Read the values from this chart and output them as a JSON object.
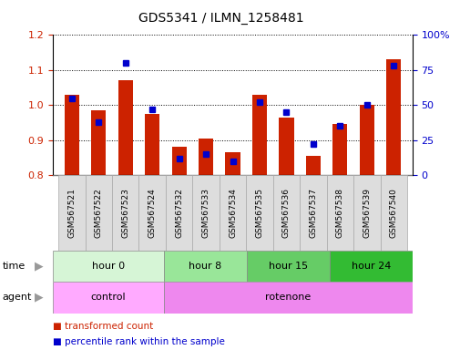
{
  "title": "GDS5341 / ILMN_1258481",
  "samples": [
    "GSM567521",
    "GSM567522",
    "GSM567523",
    "GSM567524",
    "GSM567532",
    "GSM567533",
    "GSM567534",
    "GSM567535",
    "GSM567536",
    "GSM567537",
    "GSM567538",
    "GSM567539",
    "GSM567540"
  ],
  "transformed_count": [
    1.03,
    0.985,
    1.07,
    0.975,
    0.882,
    0.905,
    0.865,
    1.03,
    0.965,
    0.855,
    0.945,
    1.0,
    1.13
  ],
  "percentile_rank": [
    55,
    38,
    80,
    47,
    12,
    15,
    10,
    52,
    45,
    22,
    35,
    50,
    78
  ],
  "ymin": 0.8,
  "ymax": 1.2,
  "yticks": [
    0.8,
    0.9,
    1.0,
    1.1,
    1.2
  ],
  "right_yticks": [
    0,
    25,
    50,
    75,
    100
  ],
  "right_ylabels": [
    "0",
    "25",
    "50",
    "75",
    "100%"
  ],
  "bar_color": "#cc2200",
  "marker_color": "#0000cc",
  "time_groups": [
    {
      "label": "hour 0",
      "start": 0,
      "end": 4,
      "color": "#d6f5d6"
    },
    {
      "label": "hour 8",
      "start": 4,
      "end": 7,
      "color": "#99e699"
    },
    {
      "label": "hour 15",
      "start": 7,
      "end": 10,
      "color": "#66cc66"
    },
    {
      "label": "hour 24",
      "start": 10,
      "end": 13,
      "color": "#33bb33"
    }
  ],
  "agent_groups": [
    {
      "label": "control",
      "start": 0,
      "end": 4,
      "color": "#ffaaff"
    },
    {
      "label": "rotenone",
      "start": 4,
      "end": 13,
      "color": "#ee88ee"
    }
  ],
  "time_label": "time",
  "agent_label": "agent",
  "legend1": "transformed count",
  "legend2": "percentile rank within the sample",
  "bar_color_hex": "#cc2200",
  "marker_color_hex": "#0000cc",
  "title_fontsize": 10,
  "tick_fontsize": 8,
  "bar_width": 0.55,
  "sample_box_color": "#dddddd",
  "sample_box_edge": "#aaaaaa"
}
